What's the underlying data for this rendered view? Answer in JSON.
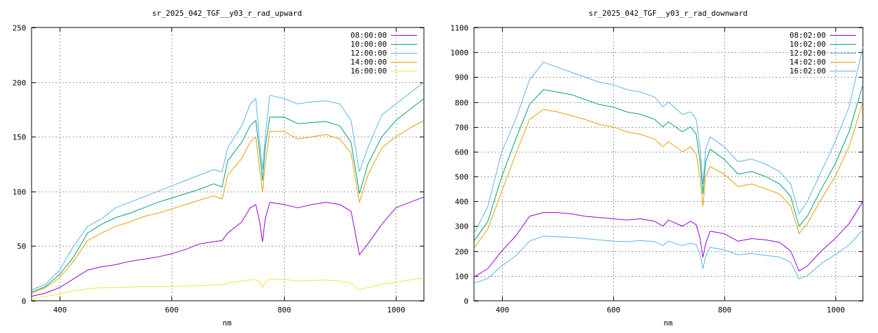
{
  "chart_data": [
    {
      "type": "line",
      "title": "sr_2025_042_TGF__y03_r_rad_upward",
      "xlabel": "nm",
      "ylabel": "",
      "xlim": [
        350,
        1050
      ],
      "ylim": [
        0,
        250
      ],
      "xticks": [
        400,
        600,
        800,
        1000
      ],
      "yticks": [
        0,
        50,
        100,
        150,
        200,
        250
      ],
      "grid": true,
      "legend_position": "top-right",
      "x": [
        350,
        375,
        400,
        425,
        450,
        475,
        500,
        525,
        550,
        575,
        600,
        625,
        650,
        675,
        690,
        700,
        725,
        740,
        750,
        757,
        762,
        767,
        775,
        800,
        825,
        850,
        875,
        900,
        920,
        935,
        950,
        975,
        1000,
        1025,
        1050
      ],
      "series": [
        {
          "name": "08:00:00",
          "color": "#9400d3",
          "values": [
            4,
            7,
            12,
            20,
            28,
            31,
            33,
            36,
            38,
            40,
            43,
            47,
            52,
            54,
            55,
            62,
            72,
            85,
            88,
            72,
            54,
            75,
            90,
            88,
            85,
            88,
            90,
            88,
            82,
            42,
            52,
            70,
            85,
            90,
            95
          ]
        },
        {
          "name": "10:00:00",
          "color": "#009e73",
          "values": [
            8,
            13,
            24,
            40,
            62,
            70,
            76,
            80,
            85,
            90,
            94,
            98,
            102,
            107,
            104,
            128,
            145,
            160,
            165,
            135,
            110,
            140,
            168,
            168,
            162,
            163,
            164,
            160,
            145,
            98,
            125,
            150,
            165,
            175,
            185
          ]
        },
        {
          "name": "12:00:00",
          "color": "#56b4e9",
          "values": [
            10,
            15,
            28,
            50,
            68,
            75,
            85,
            90,
            95,
            100,
            105,
            110,
            115,
            120,
            118,
            140,
            160,
            180,
            185,
            145,
            120,
            150,
            188,
            185,
            180,
            182,
            183,
            180,
            165,
            118,
            140,
            170,
            180,
            190,
            200
          ]
        },
        {
          "name": "14:00:00",
          "color": "#e69f00",
          "values": [
            7,
            12,
            21,
            36,
            55,
            62,
            68,
            72,
            77,
            80,
            84,
            88,
            92,
            96,
            93,
            115,
            130,
            145,
            150,
            120,
            100,
            125,
            155,
            155,
            148,
            150,
            152,
            148,
            135,
            90,
            115,
            140,
            150,
            158,
            165
          ]
        },
        {
          "name": "16:00:00",
          "color": "#f0e442",
          "values": [
            2,
            4,
            6,
            9,
            11,
            12,
            12,
            12.5,
            13,
            13,
            13,
            13.5,
            14,
            14.5,
            14.5,
            16,
            18,
            19,
            19.5,
            17,
            12,
            17,
            20,
            19.5,
            18,
            18.5,
            19,
            18,
            16,
            10,
            12,
            15,
            17,
            19,
            21
          ]
        }
      ]
    },
    {
      "type": "line",
      "title": "sr_2025_042_TGF__y03_r_rad_downward",
      "xlabel": "nm",
      "ylabel": "",
      "xlim": [
        350,
        1050
      ],
      "ylim": [
        0,
        1100
      ],
      "xticks": [
        400,
        600,
        800,
        1000
      ],
      "yticks": [
        0,
        100,
        200,
        300,
        400,
        500,
        600,
        700,
        800,
        900,
        1000,
        1100
      ],
      "grid": true,
      "legend_position": "top-right",
      "x": [
        350,
        375,
        400,
        425,
        450,
        475,
        500,
        525,
        550,
        575,
        600,
        625,
        650,
        675,
        690,
        700,
        725,
        740,
        750,
        757,
        762,
        767,
        775,
        800,
        825,
        850,
        875,
        900,
        920,
        935,
        950,
        975,
        1000,
        1025,
        1050
      ],
      "series": [
        {
          "name": "08:02:00",
          "color": "#9400d3",
          "values": [
            95,
            130,
            200,
            260,
            340,
            355,
            355,
            350,
            340,
            335,
            330,
            325,
            330,
            320,
            300,
            325,
            300,
            320,
            305,
            250,
            175,
            230,
            280,
            270,
            240,
            250,
            245,
            235,
            200,
            120,
            140,
            200,
            250,
            310,
            400
          ]
        },
        {
          "name": "10:02:00",
          "color": "#009e73",
          "values": [
            240,
            320,
            500,
            650,
            790,
            850,
            840,
            830,
            810,
            790,
            780,
            760,
            750,
            730,
            700,
            720,
            680,
            700,
            670,
            560,
            430,
            560,
            610,
            570,
            510,
            520,
            500,
            470,
            420,
            300,
            340,
            450,
            550,
            680,
            870
          ]
        },
        {
          "name": "12:02:00",
          "color": "#56b4e9",
          "values": [
            270,
            380,
            600,
            730,
            890,
            960,
            940,
            920,
            900,
            880,
            870,
            850,
            840,
            820,
            780,
            800,
            750,
            760,
            730,
            610,
            470,
            610,
            660,
            620,
            560,
            570,
            550,
            520,
            470,
            350,
            400,
            520,
            640,
            780,
            1020
          ]
        },
        {
          "name": "14:02:00",
          "color": "#e69f00",
          "values": [
            210,
            290,
            440,
            590,
            730,
            770,
            760,
            745,
            730,
            710,
            700,
            680,
            670,
            650,
            620,
            640,
            600,
            620,
            590,
            490,
            380,
            500,
            540,
            510,
            460,
            470,
            450,
            430,
            380,
            270,
            310,
            410,
            500,
            620,
            800
          ]
        },
        {
          "name": "16:02:00",
          "color": "#56b4e9",
          "values": [
            70,
            90,
            140,
            180,
            240,
            260,
            258,
            255,
            250,
            245,
            240,
            238,
            242,
            238,
            222,
            240,
            222,
            232,
            225,
            185,
            130,
            180,
            215,
            205,
            185,
            190,
            182,
            176,
            155,
            88,
            100,
            150,
            185,
            225,
            285
          ]
        }
      ]
    }
  ]
}
